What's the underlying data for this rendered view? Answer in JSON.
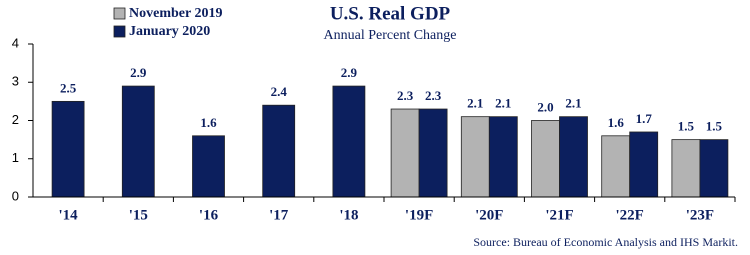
{
  "chart_data": {
    "type": "bar",
    "title": "U.S. Real GDP",
    "subtitle": "Annual Percent Change",
    "source": "Source:  Bureau of Economic Analysis and IHS Markit.",
    "categories": [
      "'14",
      "'15",
      "'16",
      "'17",
      "'18",
      "'19F",
      "'20F",
      "'21F",
      "'22F",
      "'23F"
    ],
    "series": [
      {
        "name": "November 2019",
        "color": "#b3b3b3",
        "values": [
          null,
          null,
          null,
          null,
          null,
          2.3,
          2.1,
          2.0,
          1.6,
          1.5
        ],
        "value_labels": [
          null,
          null,
          null,
          null,
          null,
          "2.3",
          "2.1",
          "2.0",
          "1.6",
          "1.5"
        ]
      },
      {
        "name": "January 2020",
        "color": "#0c1f5e",
        "values": [
          2.5,
          2.9,
          1.6,
          2.4,
          2.9,
          2.3,
          2.1,
          2.1,
          1.7,
          1.5
        ],
        "value_labels": [
          "2.5",
          "2.9",
          "1.6",
          "2.4",
          "2.9",
          "2.3",
          "2.1",
          "2.1",
          "1.7",
          "1.5"
        ]
      }
    ],
    "ylim": [
      0,
      4
    ],
    "yticks": [
      0,
      1,
      2,
      3,
      4
    ],
    "grid": false,
    "legend": "upper left"
  }
}
